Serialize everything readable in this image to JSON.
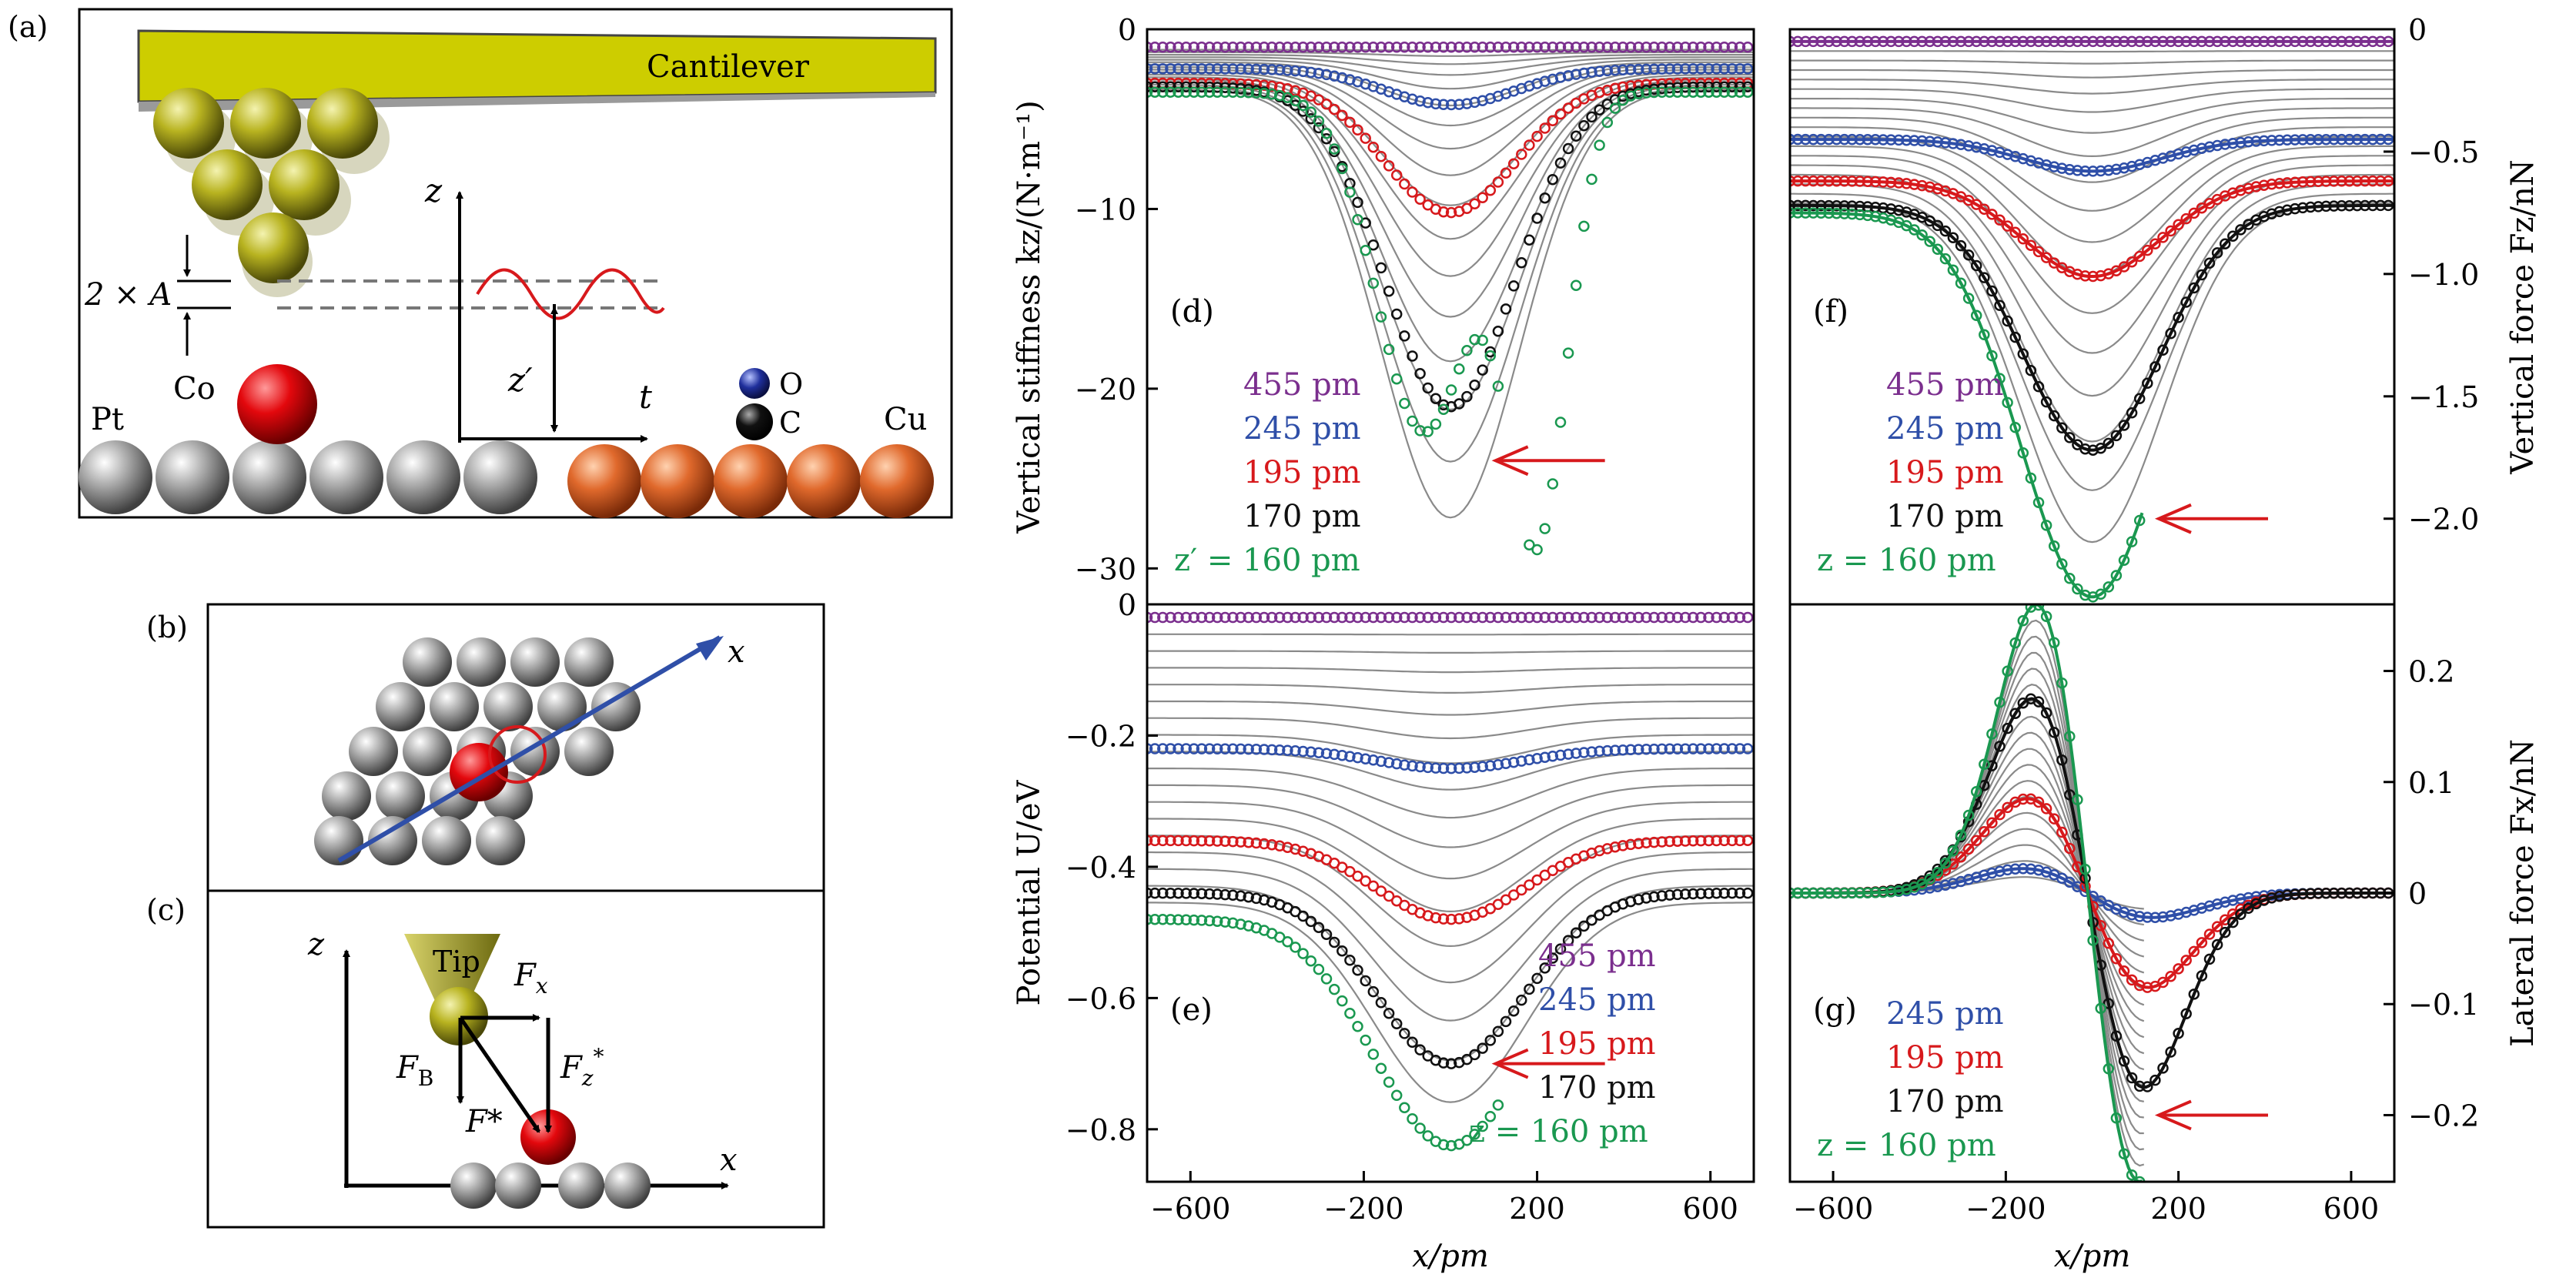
{
  "panels": {
    "a": {
      "label": "(a)",
      "cantilever": "Cantilever",
      "amp": "2 × A",
      "z": "z",
      "t": "t",
      "zprime": "z′",
      "co": "Co",
      "pt": "Pt",
      "cu": "Cu",
      "o": "O",
      "c": "C"
    },
    "b": {
      "label": "(b)",
      "x": "x"
    },
    "c": {
      "label": "(c)",
      "z": "z",
      "x": "x",
      "tip": "Tip",
      "fx": "F",
      "fx_sub": "x",
      "fb": "F",
      "fb_sub": "B",
      "fstar": "F*",
      "fzstar": "F",
      "fzstar_sub": "z",
      "fzstar_sup": "*"
    }
  },
  "chart_data": [
    {
      "panel": "d",
      "label": "(d)",
      "type": "scatter",
      "xlim": [
        -700,
        700
      ],
      "ylim": [
        -32,
        0
      ],
      "yticks": [
        "0",
        "−10",
        "−20",
        "−30"
      ],
      "yticks_v": [
        0,
        -10,
        -20,
        -30
      ],
      "ylabel": "Vertical stiffness kz/(N·m⁻¹)",
      "legend": [
        {
          "text": "455 pm",
          "color": "#7b2f8e"
        },
        {
          "text": "245 pm",
          "color": "#2f4fa8"
        },
        {
          "text": "195 pm",
          "color": "#d7191c"
        },
        {
          "text": "170 pm",
          "color": "#111111"
        },
        {
          "text": "z′ = 160 pm",
          "color": "#1a9850"
        }
      ],
      "series": [
        {
          "color": "#7b2f8e",
          "base": -1.0,
          "depth": 0.0,
          "w": 150
        },
        {
          "color": "#2f4fa8",
          "base": -2.2,
          "depth": 2.0,
          "w": 150
        },
        {
          "color": "#d7191c",
          "base": -3.0,
          "depth": 7.2,
          "w": 150
        },
        {
          "color": "#111111",
          "base": -3.2,
          "depth": 17.8,
          "w": 150
        },
        {
          "color": "#1a9850",
          "base": -3.5,
          "depth": 27.0,
          "w": 160,
          "double": true
        }
      ]
    },
    {
      "panel": "e",
      "label": "(e)",
      "type": "scatter",
      "xlim": [
        -700,
        700
      ],
      "ylim": [
        -0.88,
        0
      ],
      "yticks": [
        "0",
        "−0.2",
        "−0.4",
        "−0.6",
        "−0.8"
      ],
      "yticks_v": [
        0,
        -0.2,
        -0.4,
        -0.6,
        -0.8
      ],
      "ylabel": "Potential U/eV",
      "xlabel": "x/pm",
      "xticks": [
        "−600",
        "−200",
        "200",
        "600"
      ],
      "xticks_v": [
        -600,
        -200,
        200,
        600
      ],
      "legend": [
        {
          "text": "455 pm",
          "color": "#7b2f8e"
        },
        {
          "text": "245 pm",
          "color": "#2f4fa8"
        },
        {
          "text": "195 pm",
          "color": "#d7191c"
        },
        {
          "text": "170 pm",
          "color": "#111111"
        },
        {
          "text": "z = 160 pm",
          "color": "#1a9850"
        }
      ],
      "series": [
        {
          "color": "#7b2f8e",
          "base": -0.02,
          "depth": 0.0,
          "w": 170
        },
        {
          "color": "#2f4fa8",
          "base": -0.22,
          "depth": 0.03,
          "w": 170
        },
        {
          "color": "#d7191c",
          "base": -0.36,
          "depth": 0.12,
          "w": 170
        },
        {
          "color": "#111111",
          "base": -0.44,
          "depth": 0.26,
          "w": 170
        },
        {
          "color": "#1a9850",
          "base": -0.48,
          "depth": 0.345,
          "w": 175
        }
      ]
    },
    {
      "panel": "f",
      "label": "(f)",
      "type": "scatter",
      "xlim": [
        -700,
        700
      ],
      "ylim": [
        -2.35,
        0
      ],
      "yticks": [
        "0",
        "−0.5",
        "−1.0",
        "−1.5",
        "−2.0"
      ],
      "yticks_v": [
        0,
        -0.5,
        -1.0,
        -1.5,
        -2.0
      ],
      "ylabel": "Vertical force Fz/nN",
      "legend": [
        {
          "text": "455 pm",
          "color": "#7b2f8e"
        },
        {
          "text": "245 pm",
          "color": "#2f4fa8"
        },
        {
          "text": "195 pm",
          "color": "#d7191c"
        },
        {
          "text": "170 pm",
          "color": "#111111"
        },
        {
          "text": "z = 160 pm",
          "color": "#1a9850"
        }
      ],
      "series": [
        {
          "color": "#7b2f8e",
          "base": -0.05,
          "depth": 0.0,
          "w": 160
        },
        {
          "color": "#2f4fa8",
          "base": -0.45,
          "depth": 0.13,
          "w": 160
        },
        {
          "color": "#d7191c",
          "base": -0.62,
          "depth": 0.39,
          "w": 160
        },
        {
          "color": "#111111",
          "base": -0.72,
          "depth": 1.0,
          "w": 160
        },
        {
          "color": "#1a9850",
          "base": -0.75,
          "depth": 1.57,
          "w": 165
        }
      ]
    },
    {
      "panel": "g",
      "label": "(g)",
      "type": "scatter",
      "xlim": [
        -700,
        700
      ],
      "ylim": [
        -0.26,
        0.26
      ],
      "yticks": [
        "0.2",
        "0.1",
        "0",
        "−0.1",
        "−0.2"
      ],
      "yticks_v": [
        0.2,
        0.1,
        0,
        -0.1,
        -0.2
      ],
      "ylabel": "Lateral force Fx/nN",
      "xlabel": "x/pm",
      "xticks": [
        "−600",
        "−200",
        "200",
        "600"
      ],
      "xticks_v": [
        -600,
        -200,
        200,
        600
      ],
      "legend": [
        {
          "text": "245 pm",
          "color": "#2f4fa8"
        },
        {
          "text": "195 pm",
          "color": "#d7191c"
        },
        {
          "text": "170 pm",
          "color": "#111111"
        },
        {
          "text": "z = 160 pm",
          "color": "#1a9850"
        }
      ],
      "series": [
        {
          "color": "#2f4fa8",
          "amp": 0.022,
          "w": 150
        },
        {
          "color": "#d7191c",
          "amp": 0.085,
          "w": 140
        },
        {
          "color": "#111111",
          "amp": 0.175,
          "w": 130
        },
        {
          "color": "#1a9850",
          "amp": 0.26,
          "w": 120
        }
      ]
    }
  ]
}
